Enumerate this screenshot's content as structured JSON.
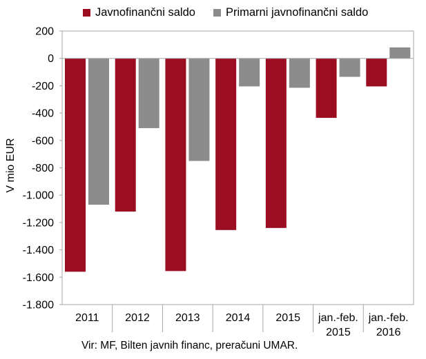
{
  "legend": [
    {
      "label": "Javnofinančni saldo",
      "color": "#9b0e22"
    },
    {
      "label": "Primarni javnofinančni saldo",
      "color": "#8c8c8c"
    }
  ],
  "source_note": "Vir: MF, Bilten javnih financ, preračuni UMAR.",
  "chart_data": {
    "type": "bar",
    "categories": [
      [
        "2011"
      ],
      [
        "2012"
      ],
      [
        "2013"
      ],
      [
        "2014"
      ],
      [
        "2015"
      ],
      [
        "jan.-feb.",
        "2015"
      ],
      [
        "jan.-feb.",
        "2016"
      ]
    ],
    "series": [
      {
        "name": "Javnofinančni saldo",
        "color": "#9b0e22",
        "values": [
          -1560,
          -1120,
          -1555,
          -1255,
          -1240,
          -435,
          -205
        ]
      },
      {
        "name": "Primarni javnofinančni saldo",
        "color": "#8c8c8c",
        "values": [
          -1070,
          -510,
          -750,
          -205,
          -215,
          -135,
          80
        ]
      }
    ],
    "ylabel": "V mio EUR",
    "ylim": [
      -1800,
      200
    ],
    "yticks": [
      200,
      0,
      -200,
      -400,
      -600,
      -800,
      -1000,
      -1200,
      -1400,
      -1600,
      -1800
    ],
    "ytick_labels": [
      "200",
      "0",
      "-200",
      "-400",
      "-600",
      "-800",
      "-1.000",
      "-1.200",
      "-1.400",
      "-1.600",
      "-1.800"
    ],
    "grid": false,
    "legend_position": "top"
  }
}
